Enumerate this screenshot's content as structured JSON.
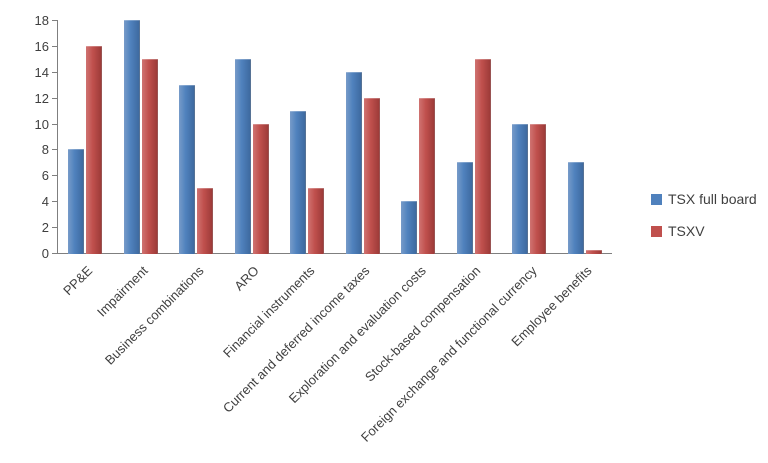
{
  "chart_data": {
    "type": "bar",
    "title": "",
    "xlabel": "",
    "ylabel": "",
    "categories": [
      "PP&E",
      "Impairment",
      "Business combinations",
      "ARO",
      "Financial instruments",
      "Current and deferred income taxes",
      "Exploration and evaluation costs",
      "Stock-based compensation",
      "Foreign exchange and functional currency",
      "Employee benefits"
    ],
    "series": [
      {
        "name": "TSX full board",
        "color": "#4f81bd",
        "values": [
          8,
          18,
          13,
          15,
          11,
          14,
          4,
          7,
          10,
          7
        ]
      },
      {
        "name": "TSXV",
        "color": "#c0504d",
        "values": [
          16,
          15,
          5,
          10,
          5,
          12,
          12,
          15,
          10,
          0.2
        ]
      }
    ],
    "ylim": [
      0,
      18
    ],
    "ytick_step": 2,
    "grid": false,
    "legend_position": "right"
  }
}
